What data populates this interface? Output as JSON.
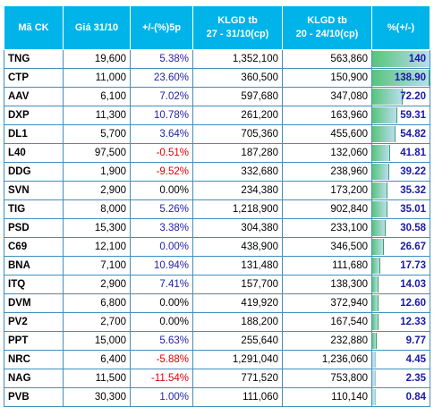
{
  "headers": {
    "symbol": "Mã CK",
    "price": "Giá 31/10",
    "change": "+/-(%)5p",
    "vol1_line1": "KLGD tb",
    "vol1_line2": "27 - 31/10(cp)",
    "vol2_line1": "KLGD tb",
    "vol2_line2": "20 - 24/10(cp)",
    "pct": "%(+/-)"
  },
  "colors": {
    "header_bg": "#00b4ea",
    "positive": "#2222aa",
    "negative": "#dd0000",
    "bar_fill": "#b9ddee",
    "bar_accent": "#58c47a"
  },
  "rows": [
    {
      "symbol": "TNG",
      "price": "19,600",
      "change": "5.38%",
      "sign": "pos",
      "vol1": "1,352,100",
      "vol2": "563,860",
      "pct": "140",
      "pct_value": 140
    },
    {
      "symbol": "CTP",
      "price": "11,000",
      "change": "23.60%",
      "sign": "pos",
      "vol1": "360,500",
      "vol2": "150,900",
      "pct": "138.90",
      "pct_value": 138.9
    },
    {
      "symbol": "AAV",
      "price": "6,100",
      "change": "7.02%",
      "sign": "pos",
      "vol1": "597,680",
      "vol2": "347,080",
      "pct": "72.20",
      "pct_value": 72.2
    },
    {
      "symbol": "DXP",
      "price": "11,300",
      "change": "10.78%",
      "sign": "pos",
      "vol1": "261,200",
      "vol2": "163,960",
      "pct": "59.31",
      "pct_value": 59.31
    },
    {
      "symbol": "DL1",
      "price": "5,700",
      "change": "3.64%",
      "sign": "pos",
      "vol1": "705,360",
      "vol2": "455,600",
      "pct": "54.82",
      "pct_value": 54.82
    },
    {
      "symbol": "L40",
      "price": "97,500",
      "change": "-0.51%",
      "sign": "neg",
      "vol1": "187,280",
      "vol2": "132,060",
      "pct": "41.81",
      "pct_value": 41.81
    },
    {
      "symbol": "DDG",
      "price": "1,900",
      "change": "-9.52%",
      "sign": "neg",
      "vol1": "332,680",
      "vol2": "238,960",
      "pct": "39.22",
      "pct_value": 39.22
    },
    {
      "symbol": "SVN",
      "price": "2,900",
      "change": "0.00%",
      "sign": "zero",
      "vol1": "234,380",
      "vol2": "173,200",
      "pct": "35.32",
      "pct_value": 35.32
    },
    {
      "symbol": "TIG",
      "price": "8,000",
      "change": "5.26%",
      "sign": "pos",
      "vol1": "1,218,900",
      "vol2": "902,840",
      "pct": "35.01",
      "pct_value": 35.01
    },
    {
      "symbol": "PSD",
      "price": "15,300",
      "change": "3.38%",
      "sign": "pos",
      "vol1": "304,380",
      "vol2": "233,100",
      "pct": "30.58",
      "pct_value": 30.58
    },
    {
      "symbol": "C69",
      "price": "12,100",
      "change": "0.00%",
      "sign": "pos",
      "vol1": "438,900",
      "vol2": "346,500",
      "pct": "26.67",
      "pct_value": 26.67
    },
    {
      "symbol": "BNA",
      "price": "7,100",
      "change": "10.94%",
      "sign": "pos",
      "vol1": "131,480",
      "vol2": "111,680",
      "pct": "17.73",
      "pct_value": 17.73
    },
    {
      "symbol": "ITQ",
      "price": "2,900",
      "change": "7.41%",
      "sign": "pos",
      "vol1": "157,700",
      "vol2": "138,300",
      "pct": "14.03",
      "pct_value": 14.03
    },
    {
      "symbol": "DVM",
      "price": "6,800",
      "change": "0.00%",
      "sign": "zero",
      "vol1": "419,920",
      "vol2": "372,940",
      "pct": "12.60",
      "pct_value": 12.6
    },
    {
      "symbol": "PV2",
      "price": "2,700",
      "change": "0.00%",
      "sign": "zero",
      "vol1": "188,200",
      "vol2": "167,540",
      "pct": "12.33",
      "pct_value": 12.33
    },
    {
      "symbol": "PPT",
      "price": "15,000",
      "change": "5.63%",
      "sign": "pos",
      "vol1": "255,640",
      "vol2": "232,880",
      "pct": "9.77",
      "pct_value": 9.77
    },
    {
      "symbol": "NRC",
      "price": "6,400",
      "change": "-5.88%",
      "sign": "neg",
      "vol1": "1,291,040",
      "vol2": "1,236,060",
      "pct": "4.45",
      "pct_value": 4.45
    },
    {
      "symbol": "NAG",
      "price": "11,500",
      "change": "-11.54%",
      "sign": "neg",
      "vol1": "771,520",
      "vol2": "753,800",
      "pct": "2.35",
      "pct_value": 2.35
    },
    {
      "symbol": "PVB",
      "price": "30,300",
      "change": "1.00%",
      "sign": "pos",
      "vol1": "111,060",
      "vol2": "110,140",
      "pct": "0.84",
      "pct_value": 0.84
    }
  ]
}
